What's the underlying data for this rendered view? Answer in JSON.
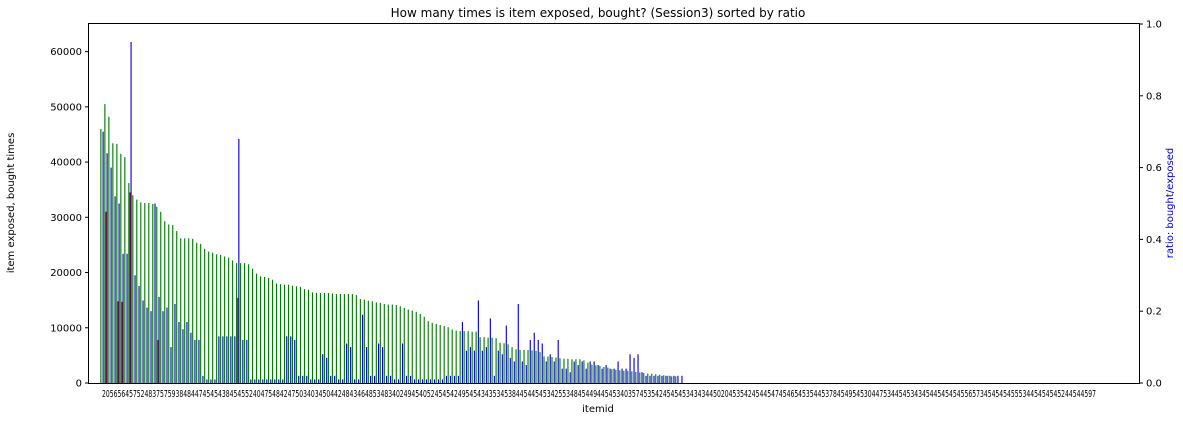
{
  "chart_data": {
    "type": "bar",
    "title": "How many times is item exposed, bought? (Session3) sorted by ratio",
    "xlabel": "itemid",
    "ylabel": "item exposed, bought times",
    "ylabel_right": "ratio: bought/exposed",
    "ylim": [
      0,
      65000
    ],
    "ylim_right": [
      0,
      1.0
    ],
    "yticks": [
      "0",
      "10000",
      "20000",
      "30000",
      "40000",
      "50000",
      "60000"
    ],
    "yticks_right": [
      "0.0",
      "0.2",
      "0.4",
      "0.6",
      "0.8",
      "1.0"
    ],
    "x_tick_text": "20565645752483757593848447454543845455240475484247503403450442484346485348340249454052454542495454343534538445445453425534845449445453403574535424545453434344502045354245445474546545354453784549545304475344545343454454545455657345454545553445454545244544597",
    "category_count": 250,
    "grid": false,
    "colors": {
      "exposed": "#007a00",
      "bought": "#cc0000",
      "ratio": "#0000cc",
      "ratio_label": "#0000cc"
    },
    "series": [
      {
        "name": "exposed",
        "axis": "left",
        "values": [
          46000,
          50500,
          48200,
          43400,
          43300,
          41500,
          40900,
          36200,
          34000,
          33200,
          32700,
          32600,
          32600,
          32400,
          31900,
          31000,
          29300,
          28700,
          28600,
          27500,
          26200,
          26200,
          26200,
          26100,
          25400,
          25200,
          24300,
          23800,
          23600,
          23300,
          23200,
          22900,
          22700,
          22200,
          21700,
          21700,
          21700,
          21500,
          20700,
          19800,
          19300,
          19200,
          19000,
          18700,
          18000,
          17900,
          17800,
          17800,
          17600,
          17500,
          17400,
          17000,
          16900,
          16400,
          16300,
          16300,
          16300,
          16300,
          16200,
          16100,
          16100,
          16100,
          16100,
          16100,
          15900,
          15200,
          15100,
          14900,
          14800,
          14600,
          14500,
          14300,
          14200,
          14200,
          14100,
          13900,
          13600,
          13300,
          13100,
          12900,
          12500,
          12000,
          11200,
          10900,
          10700,
          10500,
          10300,
          10100,
          9700,
          9500,
          9400,
          9400,
          9400,
          9300,
          9300,
          8300,
          8300,
          8200,
          8200,
          8100,
          7300,
          7200,
          7000,
          6500,
          6100,
          6000,
          6000,
          6000,
          5900,
          5800,
          5600,
          4800,
          4800,
          4700,
          4600,
          4500,
          4400,
          4400,
          4300,
          4300,
          4300,
          4100,
          3700,
          3300,
          3200,
          3100,
          2900,
          2800,
          2500,
          2400,
          2300,
          2200,
          2200,
          2100,
          2000,
          1900,
          1800,
          1700,
          1700,
          1600,
          1500,
          1400,
          1300,
          1200,
          1200
        ],
        "values_note": ""
      },
      {
        "name": "bought",
        "axis": "left",
        "values": [
          0,
          31000,
          0,
          0,
          14800,
          14700,
          0,
          34500,
          0,
          0,
          0,
          0,
          0,
          0,
          7800,
          0,
          0,
          0,
          0,
          0,
          0,
          0,
          0,
          0,
          0,
          0,
          0,
          0,
          0,
          0,
          0,
          0,
          0,
          0,
          15400,
          0,
          0,
          0,
          0,
          0,
          0,
          0,
          0,
          0,
          0,
          0,
          0,
          0,
          0,
          0,
          0,
          0,
          0,
          0,
          0,
          0,
          0,
          0,
          0,
          0,
          0,
          0,
          0,
          0,
          0,
          0,
          0,
          0,
          0,
          0,
          0,
          0,
          0,
          0,
          0,
          0,
          0,
          0,
          0,
          0,
          0,
          0,
          0,
          0,
          0,
          0,
          0,
          0,
          0,
          0,
          0,
          0,
          0,
          0,
          0,
          0,
          0,
          0,
          0,
          0,
          0,
          0,
          0,
          0,
          0,
          0,
          0,
          0,
          0,
          0,
          0,
          0,
          0,
          0,
          0,
          0,
          0,
          0,
          0,
          0,
          0,
          0,
          0,
          0,
          0,
          0,
          0,
          0,
          0,
          0,
          0,
          0,
          0,
          0,
          0,
          0,
          0,
          0,
          0,
          0,
          0,
          0,
          0,
          0,
          0
        ]
      },
      {
        "name": "ratio",
        "axis": "right",
        "values": [
          0.7,
          0.64,
          0.6,
          0.52,
          0.5,
          0.36,
          0.36,
          0.95,
          0.3,
          0.27,
          0.23,
          0.21,
          0.2,
          0.5,
          0.24,
          0.2,
          0.21,
          0.1,
          0.22,
          0.17,
          0.15,
          0.17,
          0.14,
          0.12,
          0.12,
          0.02,
          0.01,
          0.01,
          0.01,
          0.13,
          0.13,
          0.13,
          0.13,
          0.13,
          0.68,
          0.12,
          0.12,
          0.01,
          0.01,
          0.01,
          0.01,
          0.01,
          0.01,
          0.01,
          0.01,
          0.01,
          0.13,
          0.13,
          0.12,
          0.02,
          0.02,
          0.02,
          0.01,
          0.01,
          0.01,
          0.08,
          0.07,
          0.02,
          0.02,
          0.01,
          0.01,
          0.11,
          0.1,
          0.01,
          0.01,
          0.19,
          0.1,
          0.02,
          0.02,
          0.11,
          0.1,
          0.02,
          0.02,
          0.01,
          0.01,
          0.11,
          0.02,
          0.02,
          0.01,
          0.01,
          0.01,
          0.01,
          0.01,
          0.01,
          0.01,
          0.01,
          0.02,
          0.02,
          0.02,
          0.02,
          0.17,
          0.09,
          0.1,
          0.09,
          0.23,
          0.09,
          0.1,
          0.18,
          0.02,
          0.09,
          0.08,
          0.16,
          0.07,
          0.06,
          0.22,
          0.06,
          0.05,
          0.12,
          0.14,
          0.12,
          0.11,
          0.06,
          0.08,
          0.06,
          0.12,
          0.04,
          0.04,
          0.03,
          0.06,
          0.05,
          0.06,
          0.04,
          0.06,
          0.06,
          0.05,
          0.04,
          0.05,
          0.04,
          0.04,
          0.06,
          0.04,
          0.04,
          0.08,
          0.07,
          0.08,
          0.03,
          0.02,
          0.02,
          0.02,
          0.02,
          0.02,
          0.02,
          0.02,
          0.02,
          0.02,
          0.02
        ]
      }
    ]
  }
}
